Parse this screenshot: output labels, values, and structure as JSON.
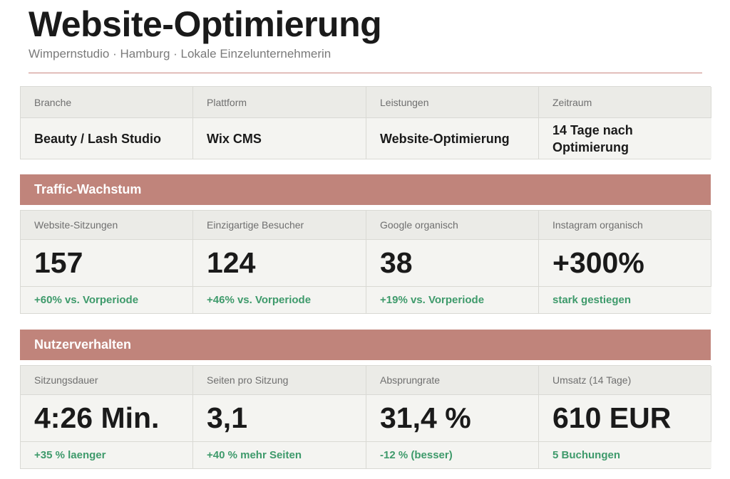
{
  "header": {
    "title": "Website-Optimierung",
    "subtitle": "Wimpernstudio · Hamburg · Lokale Einzelunternehmerin"
  },
  "info": [
    {
      "label": "Branche",
      "value": "Beauty / Lash Studio"
    },
    {
      "label": "Plattform",
      "value": "Wix CMS"
    },
    {
      "label": "Leistungen",
      "value": "Website-Optimierung"
    },
    {
      "label": "Zeitraum",
      "value": "14 Tage nach Optimierung"
    }
  ],
  "traffic": {
    "title": "Traffic-Wachstum",
    "metrics": [
      {
        "label": "Website-Sitzungen",
        "value": "157",
        "delta": "+60% vs. Vorperiode"
      },
      {
        "label": "Einzigartige Besucher",
        "value": "124",
        "delta": "+46% vs. Vorperiode"
      },
      {
        "label": "Google organisch",
        "value": "38",
        "delta": "+19% vs. Vorperiode"
      },
      {
        "label": "Instagram organisch",
        "value": "+300%",
        "delta": "stark gestiegen"
      }
    ]
  },
  "behavior": {
    "title": "Nutzerverhalten",
    "metrics": [
      {
        "label": "Sitzungsdauer",
        "value": "4:26 Min.",
        "delta": "+35 % laenger"
      },
      {
        "label": "Seiten pro Sitzung",
        "value": "3,1",
        "delta": "+40 % mehr Seiten"
      },
      {
        "label": "Absprungrate",
        "value": "31,4 %",
        "delta": "-12 % (besser)"
      },
      {
        "label": "Umsatz (14 Tage)",
        "value": "610 EUR",
        "delta": "5 Buchungen"
      }
    ]
  },
  "colors": {
    "accent": "#c0847b",
    "positive": "#3e9a6b",
    "header_cell": "#ebebe7",
    "value_cell": "#f4f4f1"
  }
}
